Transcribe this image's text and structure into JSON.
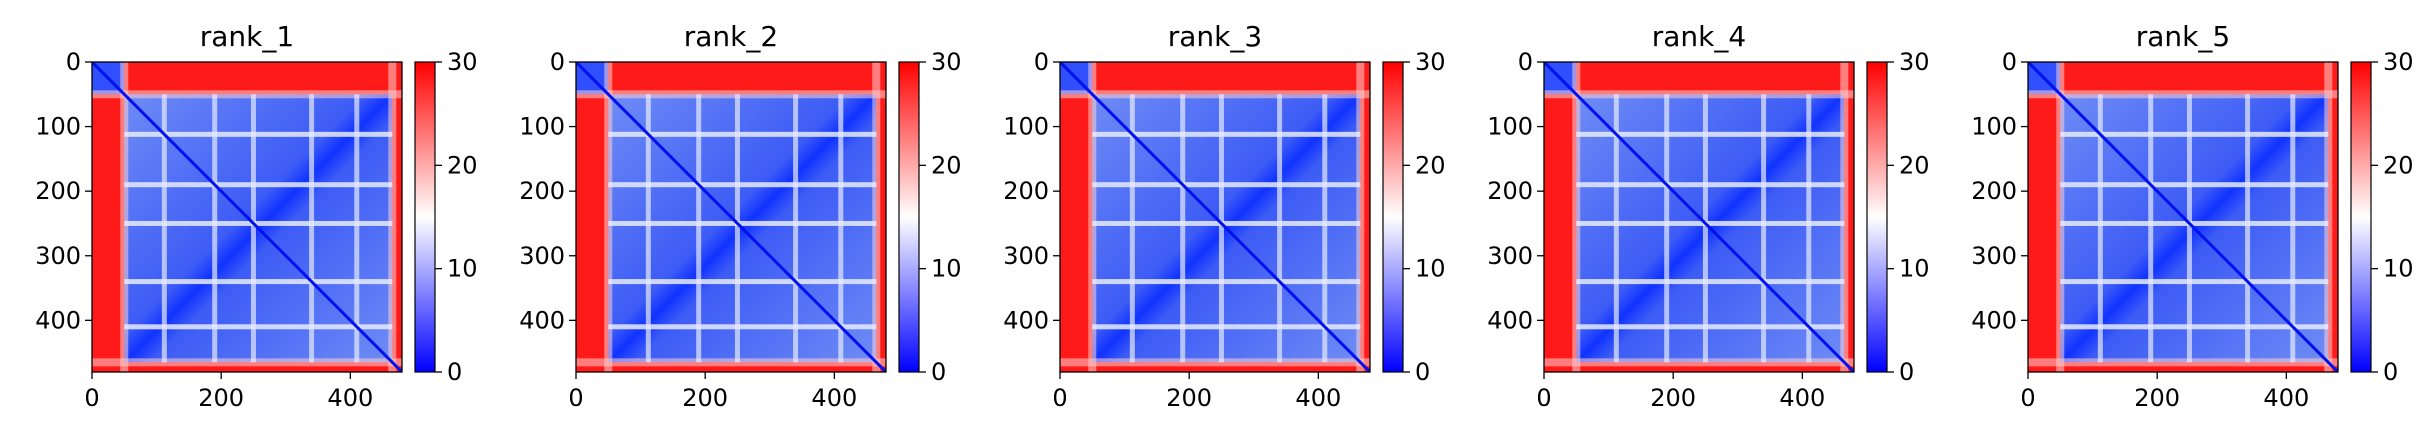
{
  "figure": {
    "colormap": [
      "#0000ff",
      "#ffffff",
      "#ff0000"
    ]
  },
  "chart_data": [
    {
      "type": "heatmap",
      "title": "rank_1",
      "xlim": [
        0,
        480
      ],
      "ylim": [
        480,
        0
      ],
      "xticks": [
        0,
        200,
        400
      ],
      "yticks": [
        0,
        100,
        200,
        300,
        400
      ],
      "colorbar": {
        "range": [
          0,
          30
        ],
        "ticks": [
          0,
          10,
          20,
          30
        ]
      },
      "domain_boundaries": [
        10,
        50,
        112,
        190,
        250,
        300,
        340,
        410,
        465
      ],
      "bright_lines": [
        112,
        190,
        250,
        340,
        410
      ],
      "grid": false
    },
    {
      "type": "heatmap",
      "title": "rank_2",
      "xlim": [
        0,
        480
      ],
      "ylim": [
        480,
        0
      ],
      "xticks": [
        0,
        200,
        400
      ],
      "yticks": [
        0,
        100,
        200,
        300,
        400
      ],
      "colorbar": {
        "range": [
          0,
          30
        ],
        "ticks": [
          0,
          10,
          20,
          30
        ]
      },
      "domain_boundaries": [
        10,
        50,
        112,
        190,
        250,
        300,
        340,
        410,
        465
      ],
      "bright_lines": [
        112,
        190,
        250,
        340,
        410
      ],
      "grid": false
    },
    {
      "type": "heatmap",
      "title": "rank_3",
      "xlim": [
        0,
        480
      ],
      "ylim": [
        480,
        0
      ],
      "xticks": [
        0,
        200,
        400
      ],
      "yticks": [
        0,
        100,
        200,
        300,
        400
      ],
      "colorbar": {
        "range": [
          0,
          30
        ],
        "ticks": [
          0,
          10,
          20,
          30
        ]
      },
      "domain_boundaries": [
        10,
        50,
        112,
        190,
        250,
        300,
        340,
        410,
        465
      ],
      "bright_lines": [
        112,
        190,
        250,
        340,
        410
      ],
      "grid": false
    },
    {
      "type": "heatmap",
      "title": "rank_4",
      "xlim": [
        0,
        480
      ],
      "ylim": [
        480,
        0
      ],
      "xticks": [
        0,
        200,
        400
      ],
      "yticks": [
        0,
        100,
        200,
        300,
        400
      ],
      "colorbar": {
        "range": [
          0,
          30
        ],
        "ticks": [
          0,
          10,
          20,
          30
        ]
      },
      "domain_boundaries": [
        10,
        50,
        112,
        190,
        250,
        300,
        340,
        410,
        465
      ],
      "bright_lines": [
        112,
        190,
        250,
        340,
        410
      ],
      "grid": false
    },
    {
      "type": "heatmap",
      "title": "rank_5",
      "xlim": [
        0,
        480
      ],
      "ylim": [
        480,
        0
      ],
      "xticks": [
        0,
        200,
        400
      ],
      "yticks": [
        0,
        100,
        200,
        300,
        400
      ],
      "colorbar": {
        "range": [
          0,
          30
        ],
        "ticks": [
          0,
          10,
          20,
          30
        ]
      },
      "domain_boundaries": [
        10,
        50,
        112,
        190,
        250,
        300,
        340,
        410,
        465
      ],
      "bright_lines": [
        112,
        190,
        250,
        340,
        410
      ],
      "grid": false
    }
  ]
}
